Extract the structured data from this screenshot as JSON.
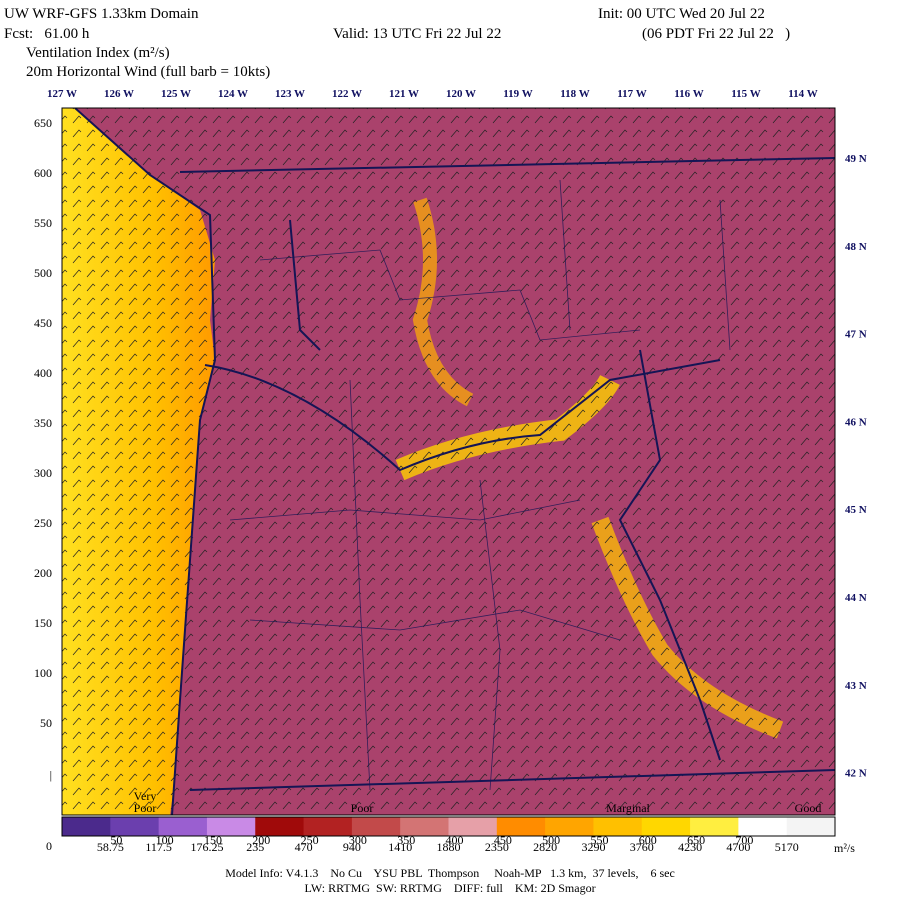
{
  "header": {
    "title": "UW WRF-GFS 1.33km Domain",
    "init": "Init: 00 UTC Wed 20 Jul 22",
    "fcst": "Fcst:   61.00 h",
    "valid": "Valid: 13 UTC Fri 22 Jul 22",
    "local": "(06 PDT Fri 22 Jul 22   )",
    "variable": "Ventilation Index (m²/s)",
    "wind": "20m Horizontal Wind  (full barb = 10kts)"
  },
  "longitudes": [
    "127 W",
    "126 W",
    "125 W",
    "124 W",
    "123 W",
    "122 W",
    "121 W",
    "120 W",
    "119 W",
    "118 W",
    "117 W",
    "116 W",
    "115 W",
    "114 W"
  ],
  "latitudes": [
    "49 N",
    "48 N",
    "47 N",
    "46 N",
    "45 N",
    "44 N",
    "43 N",
    "42 N"
  ],
  "y_axis": [
    "650",
    "600",
    "550",
    "500",
    "450",
    "400",
    "350",
    "300",
    "250",
    "200",
    "150",
    "100",
    "50",
    "|",
    "0"
  ],
  "colorbar": {
    "colors": [
      "#4b2a8c",
      "#6b3fae",
      "#9a5fd0",
      "#c98ae6",
      "#a00a0a",
      "#b22222",
      "#c24a4a",
      "#d37474",
      "#e6a0a8",
      "#ff8c00",
      "#ffa500",
      "#ffc000",
      "#ffd700",
      "#ffee40",
      "#ffffff",
      "#f4f4f4"
    ],
    "upper_labels": [
      "50",
      "100",
      "150",
      "200",
      "250",
      "300",
      "350",
      "400",
      "450",
      "500",
      "550",
      "600",
      "650",
      "700"
    ],
    "lower_labels": [
      "58.75",
      "117.5",
      "176.25",
      "235",
      "470",
      "940",
      "1410",
      "1880",
      "2350",
      "2820",
      "3290",
      "3760",
      "4230",
      "4700",
      "5170"
    ],
    "unit": "m²/s",
    "categories": [
      "Very\nPoor",
      "Poor",
      "Marginal",
      "Good"
    ]
  },
  "footer": [
    "Model Info: V4.1.3    No Cu    YSU PBL  Thompson     Noah-MP   1.3 km,  37 levels,    6 sec",
    "LW: RRTMG  SW: RRTMG    DIFF: full    KM: 2D Smagor"
  ]
}
